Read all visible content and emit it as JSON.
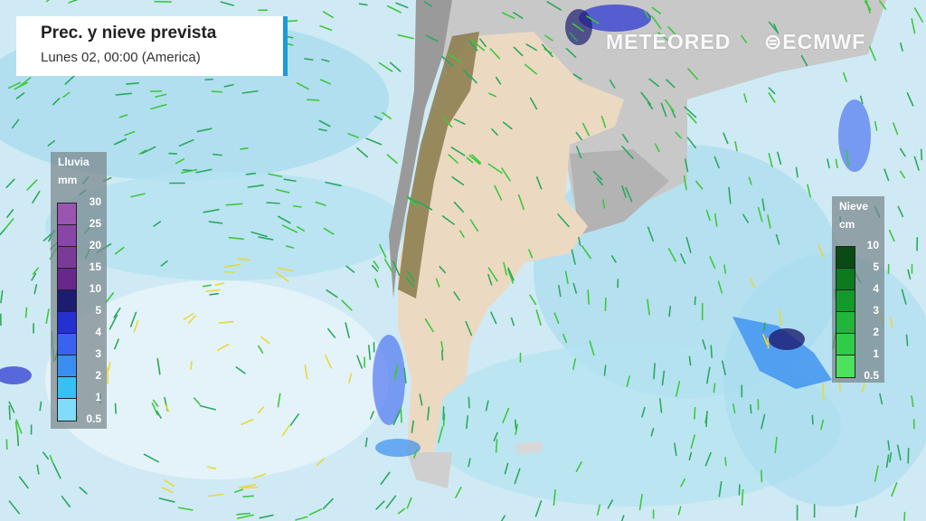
{
  "header": {
    "title": "Prec. y nieve prevista",
    "subtitle": "Lunes 02, 00:00 (America)"
  },
  "branding": {
    "meteored": "METEORED",
    "ecmwf": "ECMWF"
  },
  "rain_legend": {
    "title": "Lluvia",
    "unit": "mm",
    "levels": [
      "30",
      "25",
      "20",
      "15",
      "10",
      "5",
      "4",
      "3",
      "2",
      "1",
      "0.5"
    ],
    "colors": [
      "#9a55b0",
      "#8a46a6",
      "#7a3a98",
      "#66288a",
      "#1d1c70",
      "#2430d0",
      "#3a62f0",
      "#3a8ef0",
      "#36c0f4",
      "#80dcf8"
    ]
  },
  "snow_legend": {
    "title": "Nieve",
    "unit": "cm",
    "levels": [
      "10",
      "5",
      "4",
      "3",
      "2",
      "1",
      "0.5"
    ],
    "colors": [
      "#0a4a14",
      "#0c7a1e",
      "#149a2a",
      "#20b63a",
      "#30cc48",
      "#4ce25c"
    ]
  },
  "colors": {
    "ocean": "#cfeaf4",
    "cloud": "#a9dcee",
    "land_dry": "#ecd9c2",
    "land_other": "#b9b9b9",
    "andes": "#8a7a4a"
  }
}
